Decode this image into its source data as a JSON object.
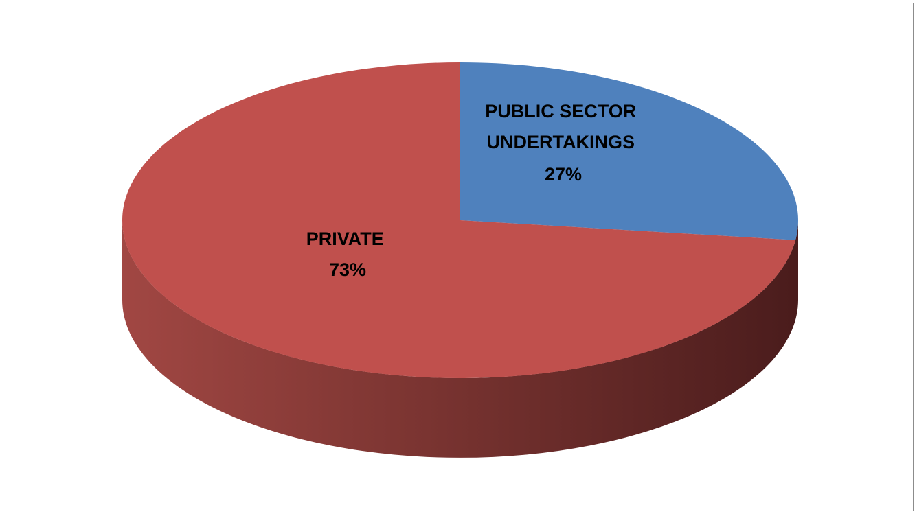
{
  "chart_data": {
    "type": "pie",
    "title": "",
    "three_d": true,
    "legend": "none",
    "slices": [
      {
        "category": "PUBLIC SECTOR UNDERTAKINGS",
        "label_lines": [
          "PUBLIC SECTOR",
          "UNDERTAKINGS"
        ],
        "value": 27,
        "display": "27%",
        "color": "#4f81bd"
      },
      {
        "category": "PRIVATE",
        "label_lines": [
          "PRIVATE"
        ],
        "value": 73,
        "display": "73%",
        "color": "#c0504d"
      }
    ]
  }
}
